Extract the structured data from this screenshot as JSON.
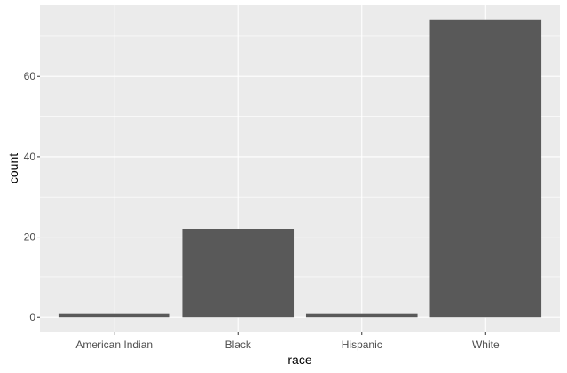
{
  "chart_data": {
    "type": "bar",
    "title": "",
    "xlabel": "race",
    "ylabel": "count",
    "categories": [
      "American Indian",
      "Black",
      "Hispanic",
      "White"
    ],
    "values": [
      1,
      22,
      1,
      74
    ],
    "ylim": [
      -3.7,
      77.7
    ],
    "yticks": [
      0,
      20,
      40,
      60
    ],
    "yticks_labels": [
      "0",
      "20",
      "40",
      "60"
    ],
    "grid": true,
    "legend": "none",
    "colors": {
      "panel_background": "#ebebeb",
      "grid_major": "#ffffff",
      "bar_fill": "#595959",
      "tick_color": "#333333",
      "tick_label": "#4d4d4d"
    }
  }
}
